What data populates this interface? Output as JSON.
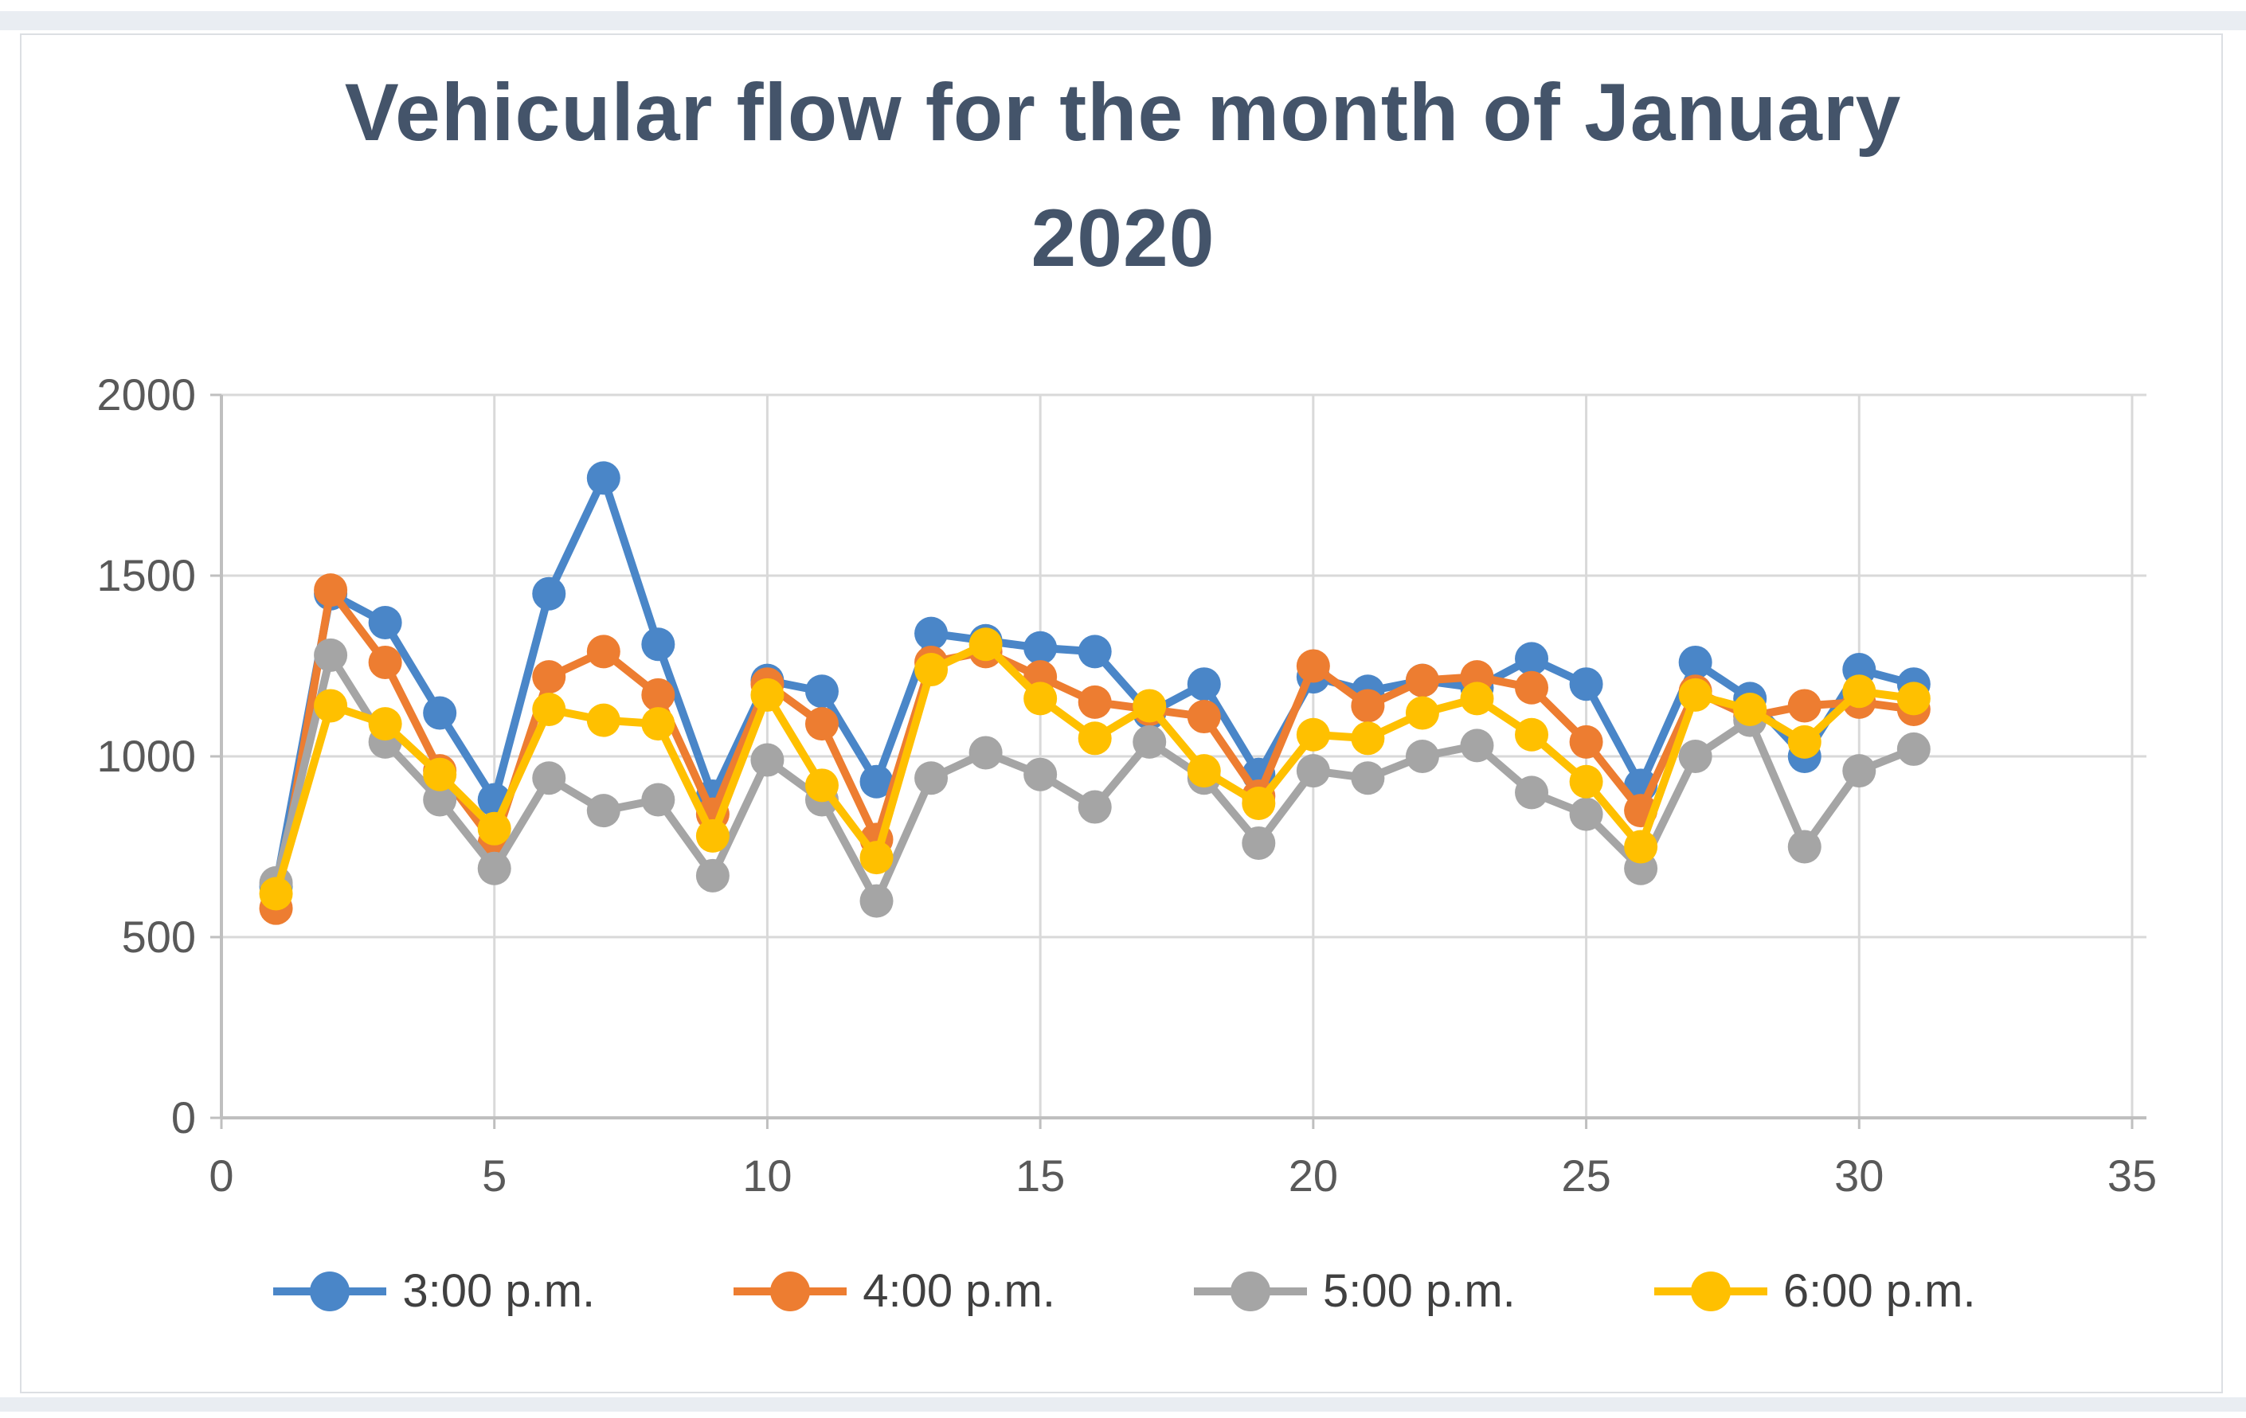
{
  "window": {
    "top_strip_color": "#e9edf2",
    "background": "#ffffff",
    "frame_border_color": "#dcdfe3"
  },
  "chart": {
    "title_line1": "Vehicular flow for the month of January",
    "title_line2": "2020",
    "title_color": "#44546A",
    "axis_label_color": "#595959",
    "gridline_color": "#d9d9d9",
    "axis_line_color": "#bfbfbf",
    "legend_text_color": "#404040"
  },
  "chart_data": {
    "type": "line",
    "title": "Vehicular flow for the month of January 2020",
    "xlabel": "",
    "ylabel": "",
    "xlim": [
      0,
      35
    ],
    "ylim": [
      0,
      2000
    ],
    "x_ticks": [
      0,
      5,
      10,
      15,
      20,
      25,
      30,
      35
    ],
    "y_ticks": [
      0,
      500,
      1000,
      1500,
      2000
    ],
    "grid": true,
    "legend_position": "bottom",
    "marker": "circle",
    "x": [
      1,
      2,
      3,
      4,
      5,
      6,
      7,
      8,
      9,
      10,
      11,
      12,
      13,
      14,
      15,
      16,
      17,
      18,
      19,
      20,
      21,
      22,
      23,
      24,
      25,
      26,
      27,
      28,
      29,
      30,
      31
    ],
    "series": [
      {
        "name": "3:00 p.m.",
        "color": "#4A86C8",
        "values": [
          640,
          1450,
          1370,
          1120,
          880,
          1450,
          1770,
          1310,
          890,
          1210,
          1180,
          930,
          1340,
          1320,
          1300,
          1290,
          1120,
          1200,
          950,
          1220,
          1180,
          1210,
          1190,
          1270,
          1200,
          920,
          1260,
          1160,
          1000,
          1240,
          1200
        ]
      },
      {
        "name": "4:00 p.m.",
        "color": "#ED7D31",
        "values": [
          580,
          1460,
          1260,
          960,
          760,
          1220,
          1290,
          1170,
          840,
          1200,
          1090,
          770,
          1260,
          1290,
          1220,
          1150,
          1130,
          1110,
          890,
          1250,
          1140,
          1210,
          1220,
          1190,
          1040,
          850,
          1180,
          1110,
          1140,
          1150,
          1130
        ]
      },
      {
        "name": "5:00 p.m.",
        "color": "#A5A5A5",
        "values": [
          650,
          1280,
          1040,
          880,
          690,
          940,
          850,
          880,
          670,
          990,
          880,
          600,
          940,
          1010,
          950,
          860,
          1040,
          940,
          760,
          960,
          940,
          1000,
          1030,
          900,
          840,
          690,
          1000,
          1100,
          750,
          960,
          1020
        ]
      },
      {
        "name": "6:00 p.m.",
        "color": "#FFC000",
        "values": [
          620,
          1140,
          1090,
          950,
          800,
          1130,
          1100,
          1090,
          780,
          1170,
          920,
          720,
          1240,
          1310,
          1160,
          1050,
          1140,
          960,
          870,
          1060,
          1050,
          1120,
          1160,
          1060,
          930,
          750,
          1170,
          1130,
          1040,
          1180,
          1160
        ]
      }
    ]
  }
}
